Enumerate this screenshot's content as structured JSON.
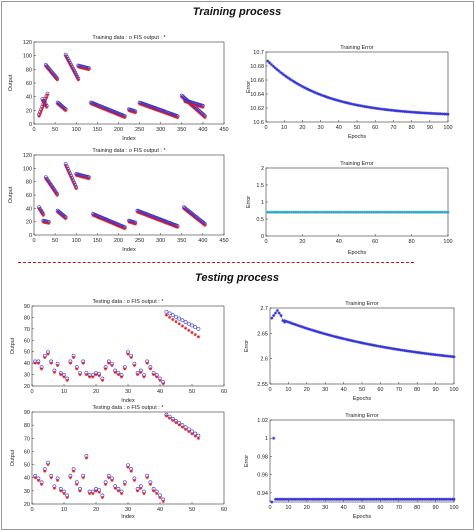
{
  "headings": {
    "train": "Training process",
    "test": "Testing process"
  },
  "charts": [
    {
      "id": "train-fis-1",
      "type": "scatter",
      "title": "Training data : o   FIS output : *",
      "xlabel": "Index",
      "ylabel": "Output",
      "xlim": [
        0,
        450
      ],
      "ylim": [
        0,
        120
      ],
      "xticks": [
        0,
        50,
        100,
        150,
        200,
        250,
        300,
        350,
        400,
        450
      ],
      "yticks": [
        0,
        20,
        40,
        60,
        80,
        100,
        120
      ],
      "colors": {
        "a": "#3232d6",
        "b": "#e02020"
      },
      "segments": [
        [
          12,
          32,
          12,
          43
        ],
        [
          28,
          55,
          85,
          65
        ],
        [
          56,
          75,
          30,
          20
        ],
        [
          75,
          105,
          100,
          65
        ],
        [
          105,
          130,
          84,
          80
        ],
        [
          135,
          215,
          30,
          10
        ],
        [
          225,
          240,
          20,
          17
        ],
        [
          250,
          340,
          30,
          10
        ],
        [
          350,
          405,
          40,
          10
        ],
        [
          358,
          400,
          33,
          25
        ],
        [
          20,
          30,
          35,
          25
        ]
      ]
    },
    {
      "id": "train-err-1",
      "type": "line",
      "title": "Training Error",
      "xlabel": "Epochs",
      "ylabel": "Error",
      "xlim": [
        0,
        100
      ],
      "ylim": [
        10.6,
        10.7
      ],
      "xticks": [
        0,
        10,
        20,
        30,
        40,
        50,
        60,
        70,
        80,
        90,
        100
      ],
      "yticks": [
        10.6,
        10.62,
        10.64,
        10.66,
        10.68,
        10.7
      ],
      "curve": {
        "start": 10.687,
        "end": 10.608,
        "rate": 3.2
      },
      "color": "#3232d6"
    },
    {
      "id": "train-fis-2",
      "type": "scatter",
      "title": "Training data : o   FIS output : *",
      "xlabel": "Index",
      "ylabel": "Output",
      "xlim": [
        0,
        450
      ],
      "ylim": [
        0,
        120
      ],
      "xticks": [
        0,
        50,
        100,
        150,
        200,
        250,
        300,
        350,
        400,
        450
      ],
      "yticks": [
        0,
        20,
        40,
        60,
        80,
        100,
        120
      ],
      "colors": {
        "a": "#3232d6",
        "b": "#e02020"
      },
      "segments": [
        [
          12,
          22,
          40,
          30
        ],
        [
          22,
          35,
          20,
          18
        ],
        [
          28,
          55,
          85,
          60
        ],
        [
          56,
          75,
          35,
          25
        ],
        [
          75,
          100,
          105,
          70
        ],
        [
          100,
          130,
          90,
          85
        ],
        [
          140,
          215,
          30,
          10
        ],
        [
          225,
          240,
          20,
          17
        ],
        [
          245,
          340,
          35,
          12
        ],
        [
          355,
          405,
          40,
          15
        ]
      ]
    },
    {
      "id": "train-err-2",
      "type": "line",
      "title": "Training Error",
      "xlabel": "Epochs",
      "ylabel": "Error",
      "xlim": [
        0,
        100
      ],
      "ylim": [
        0,
        2
      ],
      "xticks": [
        0,
        20,
        40,
        60,
        80,
        100
      ],
      "yticks": [
        0,
        0.5,
        1,
        1.5,
        2
      ],
      "flat": 0.7,
      "color": "#2aa6c8"
    },
    {
      "id": "test-fis-1",
      "type": "scatter",
      "title": "Testing data : o   FIS output : *",
      "xlabel": "Index",
      "ylabel": "Output",
      "xlim": [
        0,
        60
      ],
      "ylim": [
        20,
        90
      ],
      "xticks": [
        0,
        10,
        20,
        30,
        40,
        50,
        60
      ],
      "yticks": [
        20,
        30,
        40,
        50,
        60,
        70,
        80,
        90
      ],
      "colors": {
        "a": "#3232d6",
        "b": "#e02020"
      },
      "points": [
        [
          1,
          40
        ],
        [
          2,
          40
        ],
        [
          3,
          35
        ],
        [
          4,
          45
        ],
        [
          5,
          48
        ],
        [
          6,
          40
        ],
        [
          7,
          32
        ],
        [
          8,
          38
        ],
        [
          9,
          30
        ],
        [
          10,
          28
        ],
        [
          11,
          25
        ],
        [
          12,
          40
        ],
        [
          13,
          45
        ],
        [
          14,
          35
        ],
        [
          15,
          30
        ],
        [
          16,
          40
        ],
        [
          17,
          30
        ],
        [
          18,
          28
        ],
        [
          19,
          28
        ],
        [
          20,
          30
        ],
        [
          21,
          29
        ],
        [
          22,
          25
        ],
        [
          23,
          35
        ],
        [
          24,
          40
        ],
        [
          25,
          38
        ],
        [
          26,
          32
        ],
        [
          27,
          30
        ],
        [
          28,
          28
        ],
        [
          29,
          35
        ],
        [
          30,
          48
        ],
        [
          31,
          45
        ],
        [
          32,
          38
        ],
        [
          33,
          30
        ],
        [
          34,
          32
        ],
        [
          35,
          28
        ],
        [
          36,
          40
        ],
        [
          37,
          35
        ],
        [
          38,
          30
        ],
        [
          39,
          28
        ],
        [
          40,
          25
        ],
        [
          41,
          22
        ]
      ],
      "line_a": [
        [
          42,
          85
        ],
        [
          52,
          70
        ]
      ],
      "line_b": [
        [
          42,
          82
        ],
        [
          52,
          63
        ]
      ]
    },
    {
      "id": "test-err-1",
      "type": "line",
      "title": "Training Error",
      "xlabel": "Epochs",
      "ylabel": "Error",
      "xlim": [
        0,
        100
      ],
      "ylim": [
        2.55,
        2.7
      ],
      "xticks": [
        0,
        10,
        20,
        30,
        40,
        50,
        60,
        70,
        80,
        90,
        100
      ],
      "yticks": [
        2.55,
        2.6,
        2.65,
        2.7
      ],
      "bump": [
        [
          1,
          2.68
        ],
        [
          2,
          2.685
        ],
        [
          3,
          2.69
        ],
        [
          4,
          2.695
        ],
        [
          5,
          2.69
        ],
        [
          6,
          2.685
        ],
        [
          7,
          2.675
        ],
        [
          8,
          2.672
        ]
      ],
      "curve": {
        "from": 8,
        "start": 2.675,
        "end": 2.577,
        "rate": 1.3
      },
      "color": "#3232d6"
    },
    {
      "id": "test-fis-2",
      "type": "scatter",
      "title": "Testing data : o   FIS output : *",
      "xlabel": "Index",
      "ylabel": "Output",
      "xlim": [
        0,
        60
      ],
      "ylim": [
        20,
        90
      ],
      "xticks": [
        0,
        10,
        20,
        30,
        40,
        50,
        60
      ],
      "yticks": [
        20,
        30,
        40,
        50,
        60,
        70,
        80,
        90
      ],
      "colors": {
        "a": "#3232d6",
        "b": "#e02020"
      },
      "points": [
        [
          1,
          40
        ],
        [
          2,
          38
        ],
        [
          3,
          35
        ],
        [
          4,
          45
        ],
        [
          5,
          50
        ],
        [
          6,
          40
        ],
        [
          7,
          32
        ],
        [
          8,
          38
        ],
        [
          9,
          30
        ],
        [
          10,
          28
        ],
        [
          11,
          25
        ],
        [
          12,
          40
        ],
        [
          13,
          45
        ],
        [
          14,
          35
        ],
        [
          15,
          30
        ],
        [
          16,
          40
        ],
        [
          17,
          55
        ],
        [
          18,
          28
        ],
        [
          19,
          28
        ],
        [
          20,
          30
        ],
        [
          21,
          29
        ],
        [
          22,
          25
        ],
        [
          23,
          35
        ],
        [
          24,
          40
        ],
        [
          25,
          38
        ],
        [
          26,
          32
        ],
        [
          27,
          30
        ],
        [
          28,
          28
        ],
        [
          29,
          35
        ],
        [
          30,
          48
        ],
        [
          31,
          45
        ],
        [
          32,
          38
        ],
        [
          33,
          30
        ],
        [
          34,
          32
        ],
        [
          35,
          28
        ],
        [
          36,
          40
        ],
        [
          37,
          35
        ],
        [
          38,
          30
        ],
        [
          39,
          28
        ],
        [
          40,
          25
        ],
        [
          41,
          22
        ]
      ],
      "line_a": [
        [
          42,
          88
        ],
        [
          52,
          72
        ]
      ],
      "line_b": [
        [
          42,
          87
        ],
        [
          52,
          70
        ]
      ]
    },
    {
      "id": "test-err-2",
      "type": "line",
      "title": "Training Error",
      "xlabel": "Epochs",
      "ylabel": "Error",
      "xlim": [
        0,
        100
      ],
      "ylim": [
        0.93,
        1.02
      ],
      "xticks": [
        0,
        10,
        20,
        30,
        40,
        50,
        60,
        70,
        80,
        90,
        100
      ],
      "yticks": [
        0.94,
        0.96,
        0.98,
        1,
        1.02
      ],
      "spike": [
        [
          1,
          0.93
        ],
        [
          2,
          1.0
        ]
      ],
      "flat": 0.933,
      "color": "#3232d6"
    }
  ]
}
